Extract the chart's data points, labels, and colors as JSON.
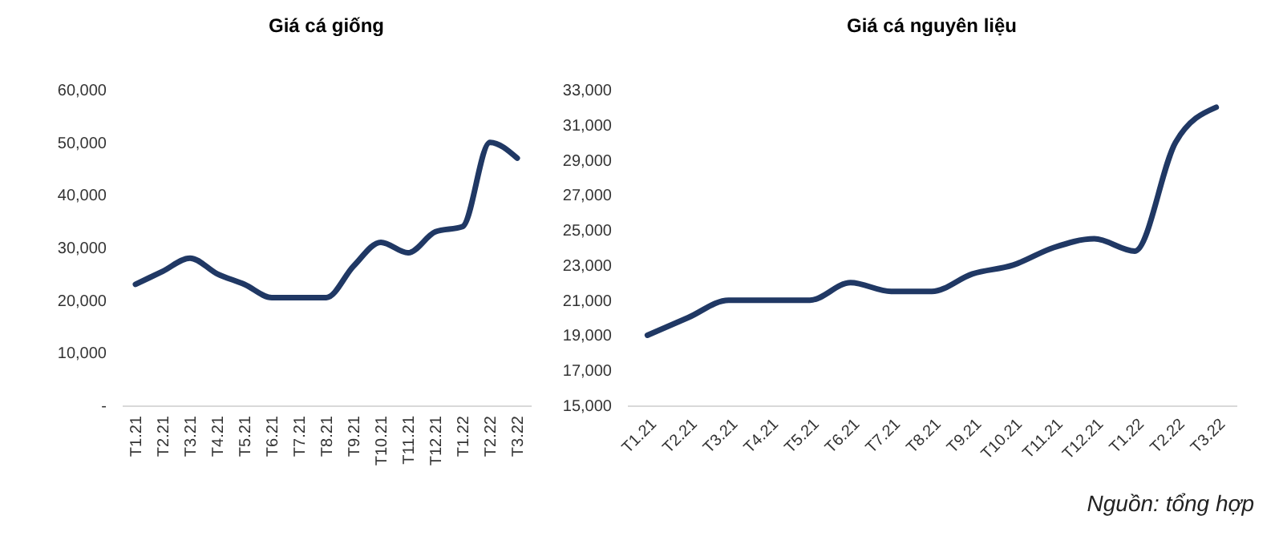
{
  "chart_data": [
    {
      "type": "line",
      "title": "Giá cá giống",
      "categories": [
        "T1.21",
        "T2.21",
        "T3.21",
        "T4.21",
        "T5.21",
        "T6.21",
        "T7.21",
        "T8.21",
        "T9.21",
        "T10.21",
        "T11.21",
        "T12.21",
        "T1.22",
        "T2.22",
        "T3.22"
      ],
      "series": [
        {
          "color": "#203864",
          "values": [
            23000,
            25500,
            28000,
            25000,
            23000,
            20500,
            20500,
            20500,
            26500,
            31000,
            29000,
            33000,
            34000,
            50000,
            47000
          ]
        }
      ],
      "ylim": [
        0,
        60000
      ],
      "yticks": [
        {
          "value": 0,
          "label": "-"
        },
        {
          "value": 10000,
          "label": "10,000"
        },
        {
          "value": 20000,
          "label": "20,000"
        },
        {
          "value": 30000,
          "label": "30,000"
        },
        {
          "value": 40000,
          "label": "40,000"
        },
        {
          "value": 50000,
          "label": "50,000"
        },
        {
          "value": 60000,
          "label": "60,000"
        }
      ],
      "grid": false,
      "marker": "none",
      "line_style": "solid"
    },
    {
      "type": "line",
      "title": "Giá cá nguyên liệu",
      "categories": [
        "T1.21",
        "T2.21",
        "T3.21",
        "T4.21",
        "T5.21",
        "T6.21",
        "T7.21",
        "T8.21",
        "T9.21",
        "T10.21",
        "T11.21",
        "T12.21",
        "T1.22",
        "T2.22",
        "T3.22"
      ],
      "series": [
        {
          "color": "#203864",
          "values": [
            19000,
            20000,
            21000,
            21000,
            21000,
            22000,
            21500,
            21500,
            22500,
            23000,
            24000,
            24500,
            23800,
            30000,
            32000
          ]
        }
      ],
      "ylim": [
        15000,
        33000
      ],
      "yticks": [
        {
          "value": 15000,
          "label": "15,000"
        },
        {
          "value": 17000,
          "label": "17,000"
        },
        {
          "value": 19000,
          "label": "19,000"
        },
        {
          "value": 21000,
          "label": "21,000"
        },
        {
          "value": 23000,
          "label": "23,000"
        },
        {
          "value": 25000,
          "label": "25,000"
        },
        {
          "value": 27000,
          "label": "27,000"
        },
        {
          "value": 29000,
          "label": "29,000"
        },
        {
          "value": 31000,
          "label": "31,000"
        },
        {
          "value": 33000,
          "label": "33,000"
        }
      ],
      "grid": false,
      "marker": "none",
      "line_style": "solid",
      "annotations": [
        "Nguồn: tổng hợp"
      ]
    }
  ]
}
